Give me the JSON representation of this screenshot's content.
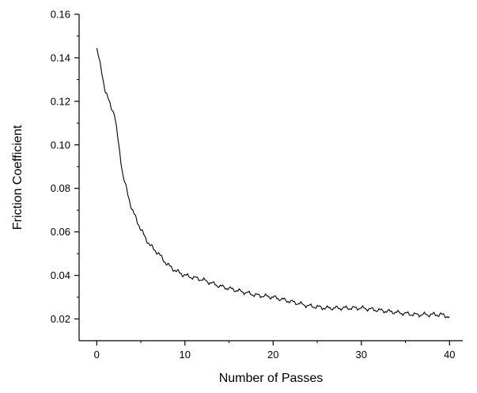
{
  "chart_data": {
    "type": "line",
    "title": "",
    "xlabel": "Number of Passes",
    "ylabel": "Friction Coefficient",
    "xlim": [
      -2,
      41.5
    ],
    "ylim": [
      0.01,
      0.16
    ],
    "xticks": [
      0,
      10,
      20,
      30,
      40
    ],
    "xtick_labels": [
      "0",
      "10",
      "20",
      "30",
      "40"
    ],
    "yticks": [
      0.02,
      0.04,
      0.06,
      0.08,
      0.1,
      0.12,
      0.14,
      0.16
    ],
    "ytick_labels": [
      "0.02",
      "0.04",
      "0.06",
      "0.08",
      "0.10",
      "0.12",
      "0.14",
      "0.16"
    ],
    "grid": false,
    "line_color": "#000000",
    "series": [
      {
        "x": [
          0,
          0.5,
          1,
          1.5,
          2,
          2.5,
          3,
          3.5,
          4,
          4.5,
          5,
          6,
          7,
          8,
          9,
          10,
          12,
          14,
          16,
          18,
          20,
          22,
          24,
          26,
          28,
          30,
          32,
          34,
          36,
          38,
          39,
          40
        ],
        "y": [
          0.144,
          0.135,
          0.124,
          0.119,
          0.114,
          0.1,
          0.085,
          0.078,
          0.07,
          0.066,
          0.061,
          0.054,
          0.05,
          0.045,
          0.042,
          0.04,
          0.038,
          0.035,
          0.033,
          0.031,
          0.03,
          0.028,
          0.026,
          0.025,
          0.025,
          0.025,
          0.024,
          0.023,
          0.022,
          0.022,
          0.022,
          0.021
        ]
      }
    ]
  }
}
